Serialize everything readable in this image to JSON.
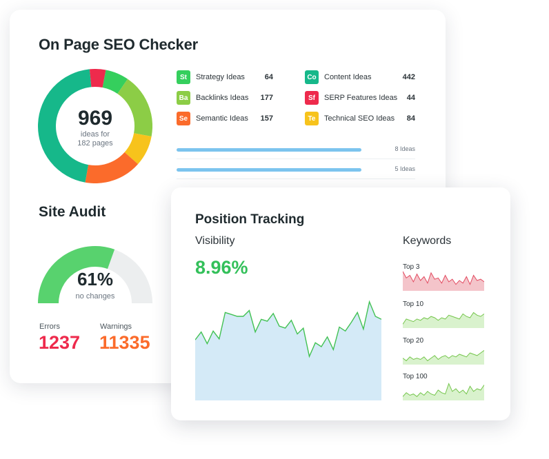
{
  "seo_checker": {
    "title": "On Page SEO Checker",
    "total": "969",
    "total_sub_line1": "ideas for",
    "total_sub_line2": "182 pages",
    "donut_segments": [
      {
        "name": "Content Ideas",
        "value": 442,
        "color": "#16b88a"
      },
      {
        "name": "SERP Features Ideas",
        "value": 44,
        "color": "#ee2a4c"
      },
      {
        "name": "Strategy Ideas",
        "value": 64,
        "color": "#35cf5d"
      },
      {
        "name": "Backlinks Ideas",
        "value": 177,
        "color": "#8ccd46"
      },
      {
        "name": "Technical SEO Ideas",
        "value": 84,
        "color": "#f7c31c"
      },
      {
        "name": "Semantic Ideas",
        "value": 157,
        "color": "#fb6b2b"
      }
    ],
    "legend": [
      {
        "badge": "St",
        "label": "Strategy Ideas",
        "value": "64",
        "color": "#35cf5d"
      },
      {
        "badge": "Ba",
        "label": "Backlinks Ideas",
        "value": "177",
        "color": "#8ccd46"
      },
      {
        "badge": "Se",
        "label": "Semantic Ideas",
        "value": "157",
        "color": "#fb6b2b"
      },
      {
        "badge": "Co",
        "label": "Content Ideas",
        "value": "442",
        "color": "#16b88a"
      },
      {
        "badge": "Sf",
        "label": "SERP Features Ideas",
        "value": "44",
        "color": "#ee2a4c"
      },
      {
        "badge": "Te",
        "label": "Technical SEO Ideas",
        "value": "84",
        "color": "#f7c31c"
      }
    ],
    "bars": [
      {
        "label": "8 Ideas"
      },
      {
        "label": "5 Ideas"
      }
    ]
  },
  "site_audit": {
    "title": "Site Audit",
    "percent": "61%",
    "percent_value": 61,
    "sub": "no changes",
    "errors_label": "Errors",
    "errors_value": "1237",
    "warnings_label": "Warnings",
    "warnings_value": "11335",
    "colors": {
      "gauge_fill": "#58d26e",
      "gauge_track": "#eceeef",
      "errors": "#ee2a4c",
      "warnings": "#fb6b2b"
    }
  },
  "position_tracking": {
    "title": "Position Tracking",
    "visibility_label": "Visibility",
    "visibility_value": "8.96%",
    "keywords_label": "Keywords",
    "visibility_series": [
      62,
      70,
      58,
      71,
      63,
      90,
      88,
      86,
      86,
      92,
      70,
      83,
      81,
      89,
      76,
      74,
      82,
      68,
      74,
      45,
      59,
      55,
      65,
      52,
      75,
      71,
      80,
      90,
      73,
      101,
      86,
      83
    ],
    "keyword_groups": [
      {
        "label": "Top 3",
        "color": "#f4c4ca",
        "stroke": "#e34b61",
        "series": [
          30,
          20,
          24,
          14,
          26,
          16,
          22,
          12,
          28,
          18,
          20,
          12,
          24,
          14,
          18,
          10,
          16,
          12,
          22,
          10,
          24,
          16,
          18,
          14
        ]
      },
      {
        "label": "Top 10",
        "color": "#d9f2cd",
        "stroke": "#74c54b",
        "series": [
          6,
          14,
          12,
          10,
          14,
          12,
          16,
          14,
          18,
          16,
          12,
          16,
          14,
          20,
          18,
          16,
          14,
          22,
          18,
          16,
          24,
          20,
          18,
          22
        ]
      },
      {
        "label": "Top 20",
        "color": "#d9f2cd",
        "stroke": "#74c54b",
        "series": [
          10,
          6,
          12,
          8,
          10,
          8,
          12,
          6,
          10,
          14,
          8,
          12,
          14,
          10,
          14,
          12,
          16,
          14,
          12,
          18,
          16,
          14,
          18,
          22
        ]
      },
      {
        "label": "Top 100",
        "color": "#d9f2cd",
        "stroke": "#74c54b",
        "series": [
          6,
          12,
          8,
          10,
          6,
          12,
          8,
          14,
          10,
          8,
          16,
          12,
          10,
          26,
          14,
          18,
          12,
          16,
          10,
          22,
          14,
          18,
          16,
          24
        ]
      }
    ],
    "colors": {
      "area_fill": "#d4eaf7",
      "area_stroke": "#42c153",
      "value": "#33c05a"
    }
  }
}
